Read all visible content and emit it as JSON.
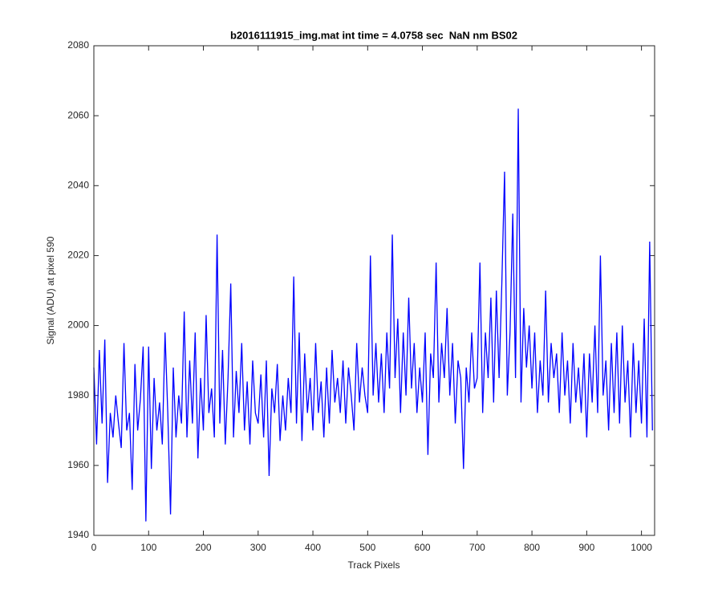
{
  "chart_data": {
    "type": "line",
    "title": "b2016111915_img.mat int time = 4.0758 sec  NaN nm BS02",
    "x_label": "Track Pixels",
    "y_label": "Signal (ADU) at pixel 590",
    "xlim": [
      0,
      1024
    ],
    "ylim": [
      1940,
      2080
    ],
    "xticks": [
      0,
      100,
      200,
      300,
      400,
      500,
      600,
      700,
      800,
      900,
      1000
    ],
    "yticks": [
      1940,
      1960,
      1980,
      2000,
      2020,
      2040,
      2060,
      2080
    ],
    "x": [
      0,
      5,
      10,
      15,
      20,
      25,
      30,
      35,
      40,
      45,
      50,
      55,
      60,
      65,
      70,
      75,
      80,
      85,
      90,
      95,
      100,
      105,
      110,
      115,
      120,
      125,
      130,
      135,
      140,
      145,
      150,
      155,
      160,
      165,
      170,
      175,
      180,
      185,
      190,
      195,
      200,
      205,
      210,
      215,
      220,
      225,
      230,
      235,
      240,
      245,
      250,
      255,
      260,
      265,
      270,
      275,
      280,
      285,
      290,
      295,
      300,
      305,
      310,
      315,
      320,
      325,
      330,
      335,
      340,
      345,
      350,
      355,
      360,
      365,
      370,
      375,
      380,
      385,
      390,
      395,
      400,
      405,
      410,
      415,
      420,
      425,
      430,
      435,
      440,
      445,
      450,
      455,
      460,
      465,
      470,
      475,
      480,
      485,
      490,
      495,
      500,
      505,
      510,
      515,
      520,
      525,
      530,
      535,
      540,
      545,
      550,
      555,
      560,
      565,
      570,
      575,
      580,
      585,
      590,
      595,
      600,
      605,
      610,
      615,
      620,
      625,
      630,
      635,
      640,
      645,
      650,
      655,
      660,
      665,
      670,
      675,
      680,
      685,
      690,
      695,
      700,
      705,
      710,
      715,
      720,
      725,
      730,
      735,
      740,
      745,
      750,
      755,
      760,
      765,
      770,
      775,
      780,
      785,
      790,
      795,
      800,
      805,
      810,
      815,
      820,
      825,
      830,
      835,
      840,
      845,
      850,
      855,
      860,
      865,
      870,
      875,
      880,
      885,
      890,
      895,
      900,
      905,
      910,
      915,
      920,
      925,
      930,
      935,
      940,
      945,
      950,
      955,
      960,
      965,
      970,
      975,
      980,
      985,
      990,
      995,
      1000,
      1005,
      1010,
      1015,
      1020
    ],
    "series": [
      {
        "color": "#0000ff",
        "values": [
          1988,
          1966,
          1993,
          1972,
          1996,
          1955,
          1975,
          1968,
          1980,
          1972,
          1965,
          1995,
          1970,
          1975,
          1953,
          1989,
          1970,
          1979,
          1994,
          1944,
          1994,
          1959,
          1985,
          1970,
          1978,
          1966,
          1998,
          1975,
          1946,
          1988,
          1968,
          1980,
          1972,
          2004,
          1968,
          1990,
          1972,
          1998,
          1962,
          1985,
          1970,
          2003,
          1975,
          1982,
          1968,
          2026,
          1972,
          1993,
          1966,
          1985,
          2012,
          1968,
          1987,
          1975,
          1995,
          1970,
          1984,
          1966,
          1990,
          1975,
          1972,
          1986,
          1968,
          1990,
          1957,
          1982,
          1975,
          1989,
          1967,
          1980,
          1970,
          1985,
          1975,
          2014,
          1972,
          1998,
          1967,
          1992,
          1975,
          1985,
          1970,
          1995,
          1975,
          1984,
          1968,
          1988,
          1972,
          1993,
          1978,
          1985,
          1975,
          1990,
          1972,
          1988,
          1980,
          1970,
          1995,
          1978,
          1988,
          1980,
          1975,
          2020,
          1980,
          1995,
          1978,
          1992,
          1975,
          1998,
          1982,
          2026,
          1985,
          2002,
          1975,
          1998,
          1980,
          2008,
          1982,
          1995,
          1975,
          1988,
          1978,
          1998,
          1963,
          1992,
          1985,
          2018,
          1978,
          1995,
          1985,
          2005,
          1980,
          1995,
          1972,
          1990,
          1985,
          1959,
          1988,
          1978,
          1998,
          1982,
          1985,
          2018,
          1975,
          1998,
          1985,
          2008,
          1978,
          2010,
          1985,
          2012,
          2044,
          1980,
          1998,
          2032,
          1985,
          2062,
          1978,
          2005,
          1988,
          2000,
          1982,
          1998,
          1975,
          1990,
          1980,
          2010,
          1978,
          1995,
          1985,
          1992,
          1975,
          1998,
          1980,
          1990,
          1972,
          1995,
          1978,
          1988,
          1975,
          1992,
          1968,
          1992,
          1978,
          2000,
          1975,
          2020,
          1980,
          1990,
          1970,
          1995,
          1975,
          1998,
          1972,
          2000,
          1978,
          1990,
          1968,
          1995,
          1975,
          1990,
          1972,
          2002,
          1968,
          2024,
          1970
        ]
      }
    ]
  }
}
